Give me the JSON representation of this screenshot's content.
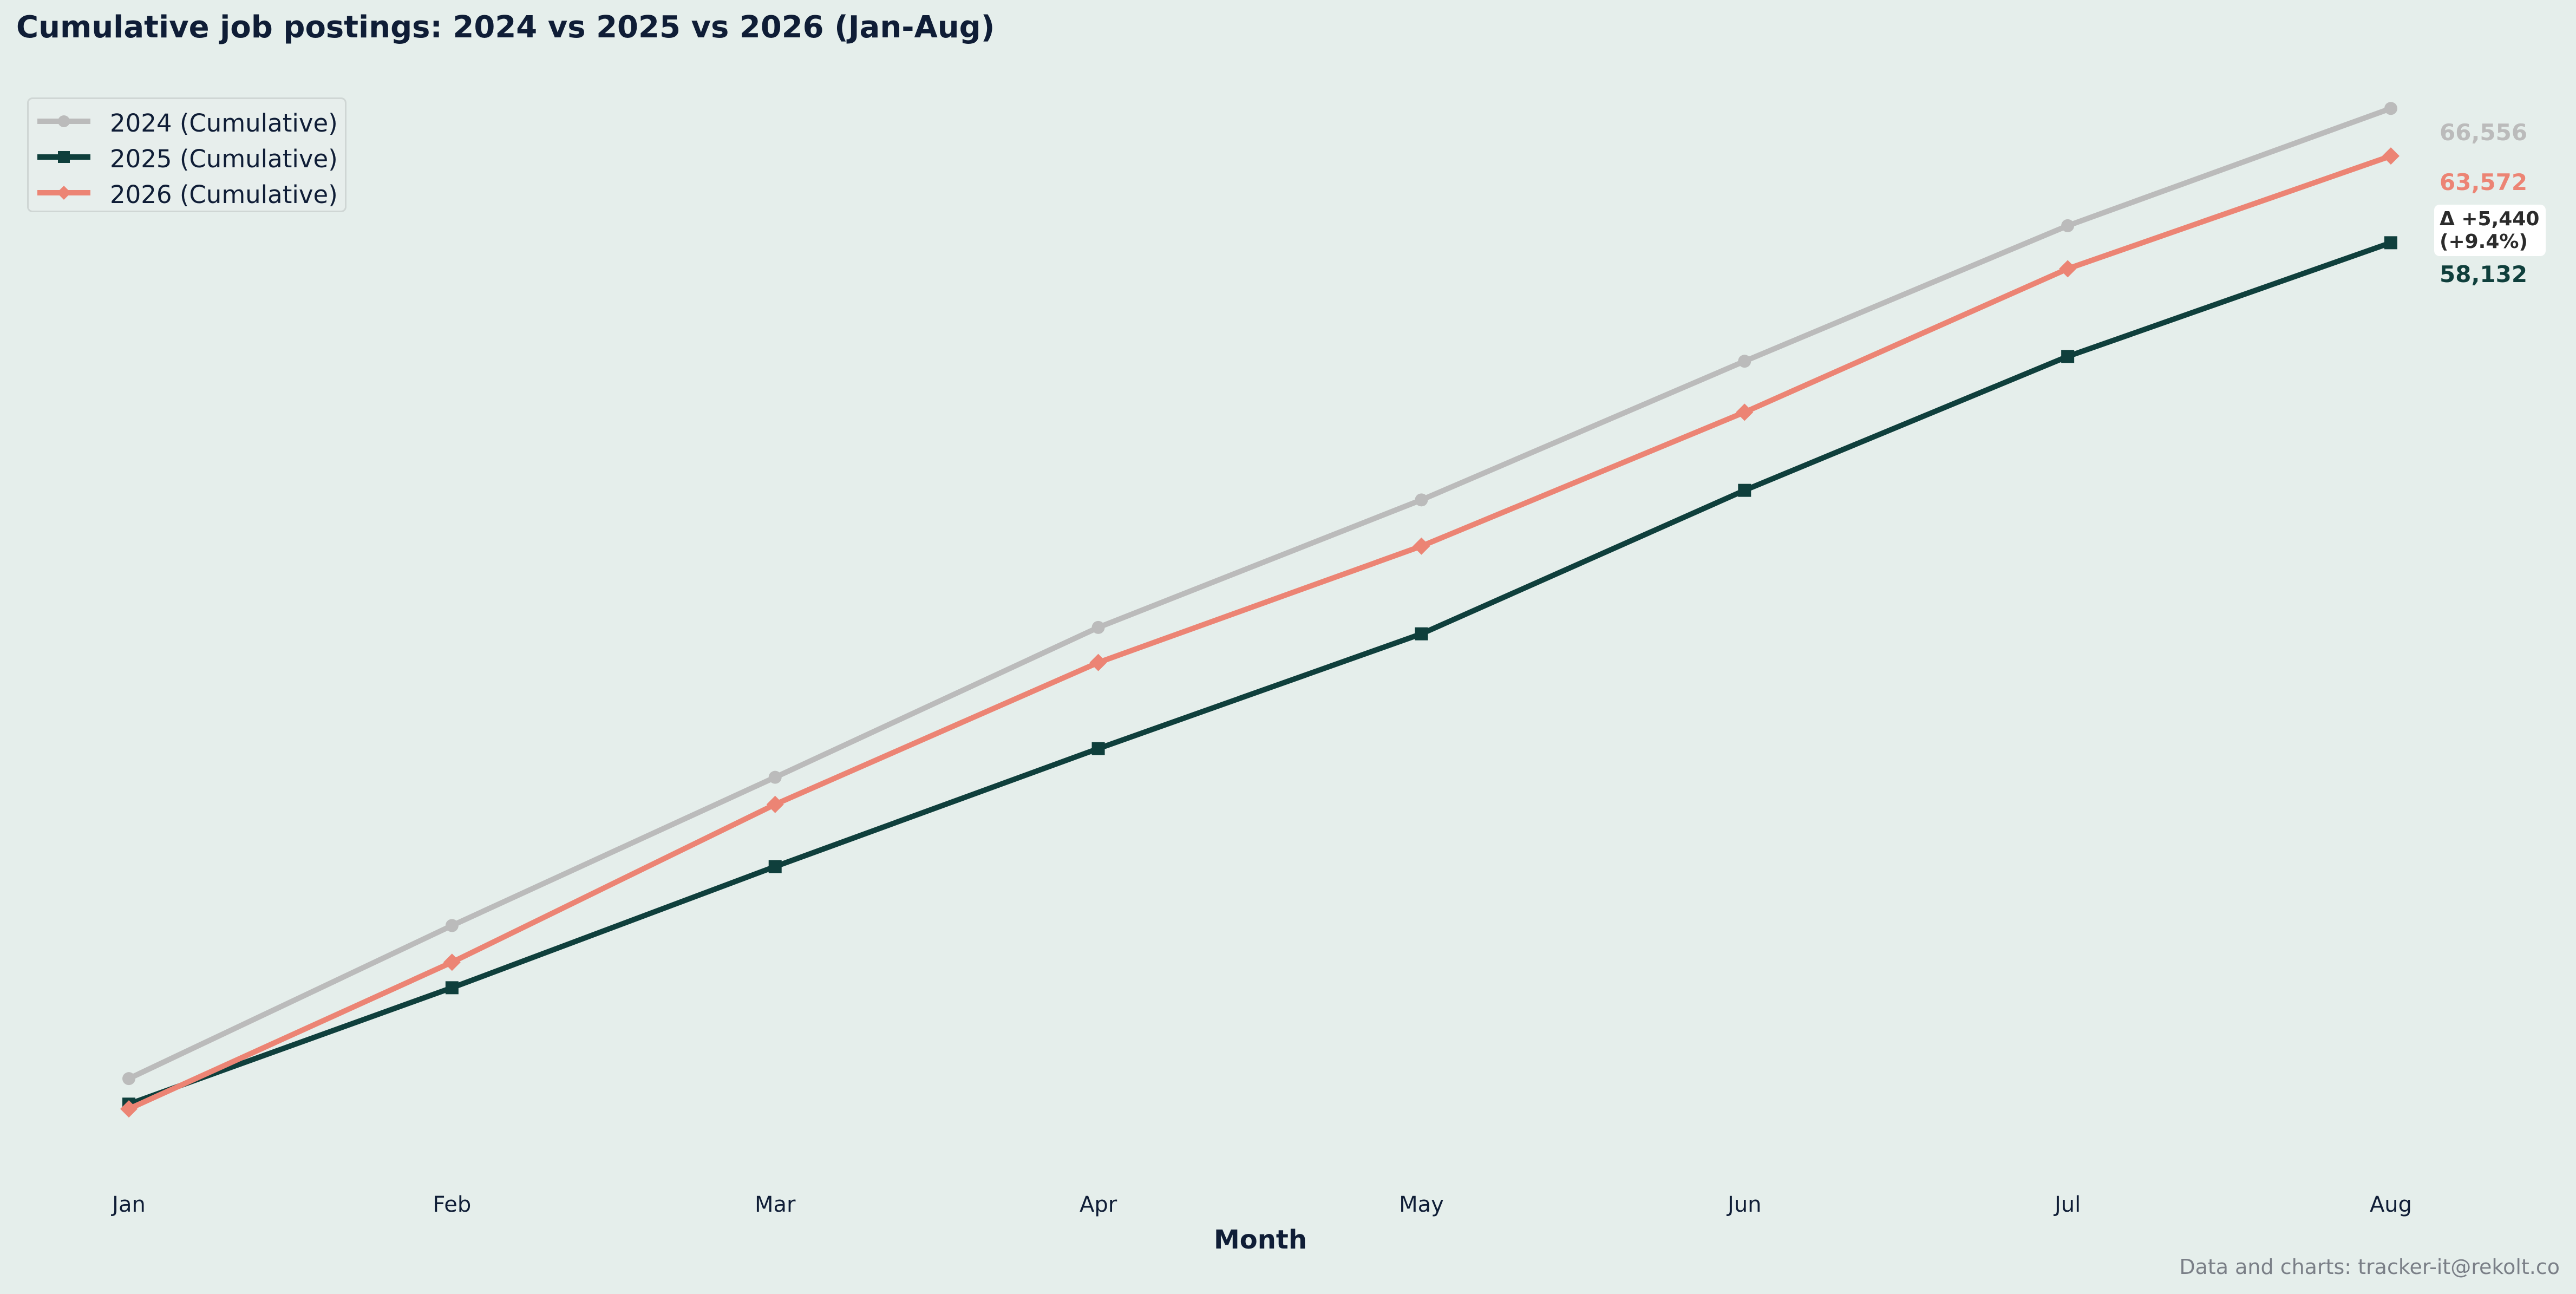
{
  "chart_data": {
    "type": "line",
    "title": "Cumulative job postings: 2024 vs 2025 vs 2026 (Jan-Aug)",
    "xlabel": "Month",
    "ylabel": "",
    "categories": [
      "Jan",
      "Feb",
      "Mar",
      "Apr",
      "May",
      "Jun",
      "Jul",
      "Aug"
    ],
    "ylim": [
      0,
      72000
    ],
    "grid": false,
    "legend_position": "top-left",
    "series": [
      {
        "name": "2024 (Cumulative)",
        "color": "#bbbbbb",
        "marker": "circle",
        "values": [
          5700,
          15300,
          24600,
          34000,
          42000,
          50700,
          59200,
          66556
        ],
        "end_label": "66,556"
      },
      {
        "name": "2025 (Cumulative)",
        "color": "#0f3f3c",
        "marker": "square",
        "values": [
          4100,
          11400,
          19000,
          26400,
          33600,
          42600,
          51000,
          58132
        ],
        "end_label": "58,132"
      },
      {
        "name": "2026 (Cumulative)",
        "color": "#ec8474",
        "marker": "diamond",
        "values": [
          3800,
          13000,
          22900,
          31800,
          39100,
          47500,
          56500,
          63572
        ],
        "end_label": "63,572"
      }
    ],
    "annotation": {
      "line1": "Δ +5,440",
      "line2": "(+9.4%)"
    }
  },
  "footer": {
    "credit": "Data and charts: tracker-it@rekolt.co"
  }
}
